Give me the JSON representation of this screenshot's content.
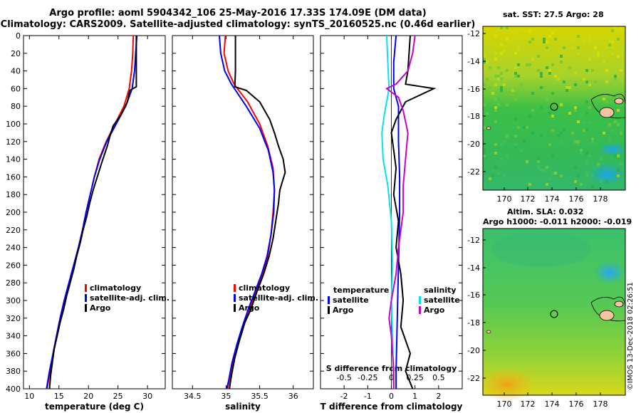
{
  "header": {
    "title_line1": "Argo profile: aoml 5904342_106 25-May-2016 17.33S 174.09E (DM data)",
    "title_line2": "Climatology: CARS2009. Satellite-adjusted climatology: synTS_20160525.nc (0.46d earlier)"
  },
  "maps": {
    "sst_title": "sat. SST: 27.5 Argo: 28",
    "sla_title_line1": "Altim. SLA: 0.032",
    "sla_title_line2": "Argo h1000: -0.011 h2000: -0.019",
    "lon_ticks": [
      "170",
      "172",
      "174",
      "176",
      "178"
    ],
    "lat_ticks": [
      "-12",
      "-14",
      "-16",
      "-18",
      "-20",
      "-22"
    ],
    "marker_color": "#000000"
  },
  "footer": {
    "stamp": "©IMOS 13-Dec-2018 02:26:51"
  },
  "colors": {
    "climatology": "#ff0000",
    "satellite": "#0000ff",
    "argo": "#000000",
    "sat_s": "#00e5ee",
    "argo_s": "#cc00cc"
  },
  "chart_data": [
    {
      "type": "line",
      "title": "",
      "xlabel": "temperature (deg C)",
      "ylabel": "depth",
      "xlim": [
        9,
        33
      ],
      "ylim": [
        400,
        0
      ],
      "xticks": [
        "10",
        "15",
        "20",
        "25",
        "30"
      ],
      "yticks": [
        "0",
        "20",
        "40",
        "60",
        "80",
        "100",
        "120",
        "140",
        "160",
        "180",
        "200",
        "220",
        "240",
        "260",
        "280",
        "300",
        "320",
        "340",
        "360",
        "380",
        "400"
      ],
      "legend": [
        "climatology",
        "satellite-adj. clim.",
        "Argo"
      ],
      "series": [
        {
          "name": "climatology",
          "color": "#ff0000",
          "points": [
            [
              27.6,
              0
            ],
            [
              27.5,
              20
            ],
            [
              27.3,
              40
            ],
            [
              26.9,
              60
            ],
            [
              26.0,
              80
            ],
            [
              24.5,
              100
            ],
            [
              23.0,
              120
            ],
            [
              21.8,
              140
            ],
            [
              21.0,
              160
            ],
            [
              20.3,
              180
            ],
            [
              19.6,
              200
            ],
            [
              19.0,
              220
            ],
            [
              18.3,
              240
            ],
            [
              17.5,
              260
            ],
            [
              16.7,
              280
            ],
            [
              15.9,
              300
            ],
            [
              15.2,
              320
            ],
            [
              14.6,
              340
            ],
            [
              14.0,
              360
            ],
            [
              13.5,
              380
            ],
            [
              13.0,
              400
            ]
          ]
        },
        {
          "name": "satellite-adj. clim.",
          "color": "#0000ff",
          "points": [
            [
              28.2,
              0
            ],
            [
              28.0,
              20
            ],
            [
              27.8,
              40
            ],
            [
              27.4,
              60
            ],
            [
              26.3,
              80
            ],
            [
              24.7,
              100
            ],
            [
              23.1,
              120
            ],
            [
              21.9,
              140
            ],
            [
              21.0,
              160
            ],
            [
              20.3,
              180
            ],
            [
              19.6,
              200
            ],
            [
              19.0,
              220
            ],
            [
              18.3,
              240
            ],
            [
              17.5,
              260
            ],
            [
              16.7,
              280
            ],
            [
              15.9,
              300
            ],
            [
              15.2,
              320
            ],
            [
              14.6,
              340
            ],
            [
              14.0,
              360
            ],
            [
              13.4,
              380
            ],
            [
              12.9,
              400
            ]
          ]
        },
        {
          "name": "Argo",
          "color": "#000000",
          "points": [
            [
              28.1,
              0
            ],
            [
              28.1,
              20
            ],
            [
              28.1,
              40
            ],
            [
              28.1,
              58
            ],
            [
              27.0,
              62
            ],
            [
              26.6,
              75
            ],
            [
              25.5,
              90
            ],
            [
              24.2,
              102
            ],
            [
              23.8,
              110
            ],
            [
              23.2,
              125
            ],
            [
              22.2,
              145
            ],
            [
              21.5,
              160
            ],
            [
              20.8,
              175
            ],
            [
              20.2,
              190
            ],
            [
              19.7,
              205
            ],
            [
              19.1,
              220
            ],
            [
              18.6,
              235
            ],
            [
              18.0,
              250
            ],
            [
              17.5,
              265
            ],
            [
              16.9,
              280
            ],
            [
              16.3,
              295
            ],
            [
              15.8,
              310
            ],
            [
              15.2,
              325
            ],
            [
              14.7,
              340
            ],
            [
              14.2,
              355
            ],
            [
              13.9,
              370
            ],
            [
              13.6,
              385
            ],
            [
              13.4,
              400
            ]
          ]
        }
      ]
    },
    {
      "type": "line",
      "title": "",
      "xlabel": "salinity",
      "ylabel": "",
      "xlim": [
        34.2,
        36.3
      ],
      "ylim": [
        400,
        0
      ],
      "xticks": [
        "34.5",
        "35",
        "35.5",
        "36"
      ],
      "legend": [
        "climatology",
        "satellite-adj. clim.",
        "Argo"
      ],
      "series": [
        {
          "name": "climatology",
          "color": "#ff0000",
          "points": [
            [
              34.99,
              0
            ],
            [
              34.97,
              20
            ],
            [
              35.03,
              40
            ],
            [
              35.12,
              55
            ],
            [
              35.32,
              75
            ],
            [
              35.5,
              100
            ],
            [
              35.62,
              125
            ],
            [
              35.7,
              150
            ],
            [
              35.72,
              175
            ],
            [
              35.7,
              200
            ],
            [
              35.67,
              225
            ],
            [
              35.62,
              250
            ],
            [
              35.55,
              270
            ],
            [
              35.45,
              290
            ],
            [
              35.35,
              310
            ],
            [
              35.25,
              330
            ],
            [
              35.17,
              350
            ],
            [
              35.1,
              370
            ],
            [
              35.05,
              390
            ],
            [
              35.02,
              400
            ]
          ]
        },
        {
          "name": "satellite-adj. clim.",
          "color": "#0000ff",
          "points": [
            [
              34.9,
              0
            ],
            [
              34.92,
              20
            ],
            [
              34.98,
              40
            ],
            [
              35.08,
              55
            ],
            [
              35.3,
              80
            ],
            [
              35.5,
              105
            ],
            [
              35.63,
              130
            ],
            [
              35.7,
              155
            ],
            [
              35.72,
              175
            ],
            [
              35.71,
              200
            ],
            [
              35.67,
              225
            ],
            [
              35.61,
              250
            ],
            [
              35.53,
              270
            ],
            [
              35.43,
              290
            ],
            [
              35.33,
              310
            ],
            [
              35.24,
              330
            ],
            [
              35.16,
              350
            ],
            [
              35.09,
              370
            ],
            [
              35.04,
              390
            ],
            [
              35.01,
              400
            ]
          ]
        },
        {
          "name": "Argo",
          "color": "#000000",
          "points": [
            [
              35.14,
              0
            ],
            [
              35.14,
              20
            ],
            [
              35.14,
              40
            ],
            [
              35.13,
              58
            ],
            [
              35.3,
              62
            ],
            [
              35.5,
              75
            ],
            [
              35.65,
              95
            ],
            [
              35.72,
              110
            ],
            [
              35.78,
              125
            ],
            [
              35.85,
              140
            ],
            [
              35.88,
              155
            ],
            [
              35.84,
              165
            ],
            [
              35.8,
              175
            ],
            [
              35.78,
              190
            ],
            [
              35.74,
              210
            ],
            [
              35.7,
              230
            ],
            [
              35.64,
              250
            ],
            [
              35.56,
              270
            ],
            [
              35.46,
              290
            ],
            [
              35.37,
              310
            ],
            [
              35.28,
              325
            ],
            [
              35.2,
              345
            ],
            [
              35.13,
              365
            ],
            [
              35.08,
              385
            ],
            [
              35.05,
              400
            ]
          ]
        }
      ]
    },
    {
      "type": "line",
      "title": "",
      "xlabel": "T difference from climatology",
      "xlabel2": "S difference from climatology",
      "ylabel": "",
      "xlim": [
        -3,
        3
      ],
      "ylim": [
        400,
        0
      ],
      "xticks": [
        "-2",
        "-1",
        "0",
        "1",
        "2"
      ],
      "xticks_s": [
        "-0.5",
        "-0.25",
        "0",
        "0.25",
        "0.5"
      ],
      "legend_t_heading": "temperature",
      "legend_s_heading": "salinity",
      "legend_t": [
        "satellite",
        "Argo"
      ],
      "legend_s": [
        "satellite",
        "Argo"
      ],
      "series": [
        {
          "name": "temperature satellite",
          "color": "#0000ff",
          "points": [
            [
              0.2,
              0
            ],
            [
              0.1,
              30
            ],
            [
              0.1,
              60
            ],
            [
              0.3,
              80
            ],
            [
              0.3,
              120
            ],
            [
              0.35,
              160
            ],
            [
              0.35,
              200
            ],
            [
              0.3,
              260
            ],
            [
              0.25,
              320
            ],
            [
              0.2,
              380
            ],
            [
              0.2,
              400
            ]
          ]
        },
        {
          "name": "temperature Argo",
          "color": "#000000",
          "points": [
            [
              0.8,
              0
            ],
            [
              0.7,
              40
            ],
            [
              0.6,
              55
            ],
            [
              1.8,
              60
            ],
            [
              0.6,
              75
            ],
            [
              0.2,
              95
            ],
            [
              0.0,
              110
            ],
            [
              0.1,
              130
            ],
            [
              0.2,
              150
            ],
            [
              0.1,
              180
            ],
            [
              0.3,
              210
            ],
            [
              0.2,
              240
            ],
            [
              0.4,
              270
            ],
            [
              0.5,
              300
            ],
            [
              0.4,
              330
            ],
            [
              0.8,
              360
            ],
            [
              0.6,
              380
            ],
            [
              0.9,
              400
            ]
          ]
        },
        {
          "name": "salinity satellite",
          "color": "#00e5ee",
          "points": [
            [
              -0.2,
              0
            ],
            [
              -0.15,
              30
            ],
            [
              -0.1,
              60
            ],
            [
              -0.3,
              90
            ],
            [
              -0.4,
              110
            ],
            [
              -0.35,
              140
            ],
            [
              -0.15,
              170
            ],
            [
              0.0,
              210
            ],
            [
              0.05,
              260
            ],
            [
              0.0,
              300
            ],
            [
              0.05,
              340
            ],
            [
              0.08,
              380
            ],
            [
              0.1,
              400
            ]
          ]
        },
        {
          "name": "salinity Argo",
          "color": "#cc00cc",
          "points": [
            [
              1.0,
              0
            ],
            [
              0.9,
              20
            ],
            [
              0.7,
              40
            ],
            [
              0.2,
              55
            ],
            [
              -0.2,
              60
            ],
            [
              0.3,
              70
            ],
            [
              0.5,
              85
            ],
            [
              0.7,
              110
            ],
            [
              0.6,
              140
            ],
            [
              0.5,
              170
            ],
            [
              0.5,
              200
            ],
            [
              0.3,
              240
            ],
            [
              0.2,
              270
            ],
            [
              0.0,
              300
            ],
            [
              -0.1,
              320
            ],
            [
              0.0,
              340
            ],
            [
              0.1,
              380
            ],
            [
              0.1,
              400
            ]
          ]
        }
      ]
    }
  ]
}
